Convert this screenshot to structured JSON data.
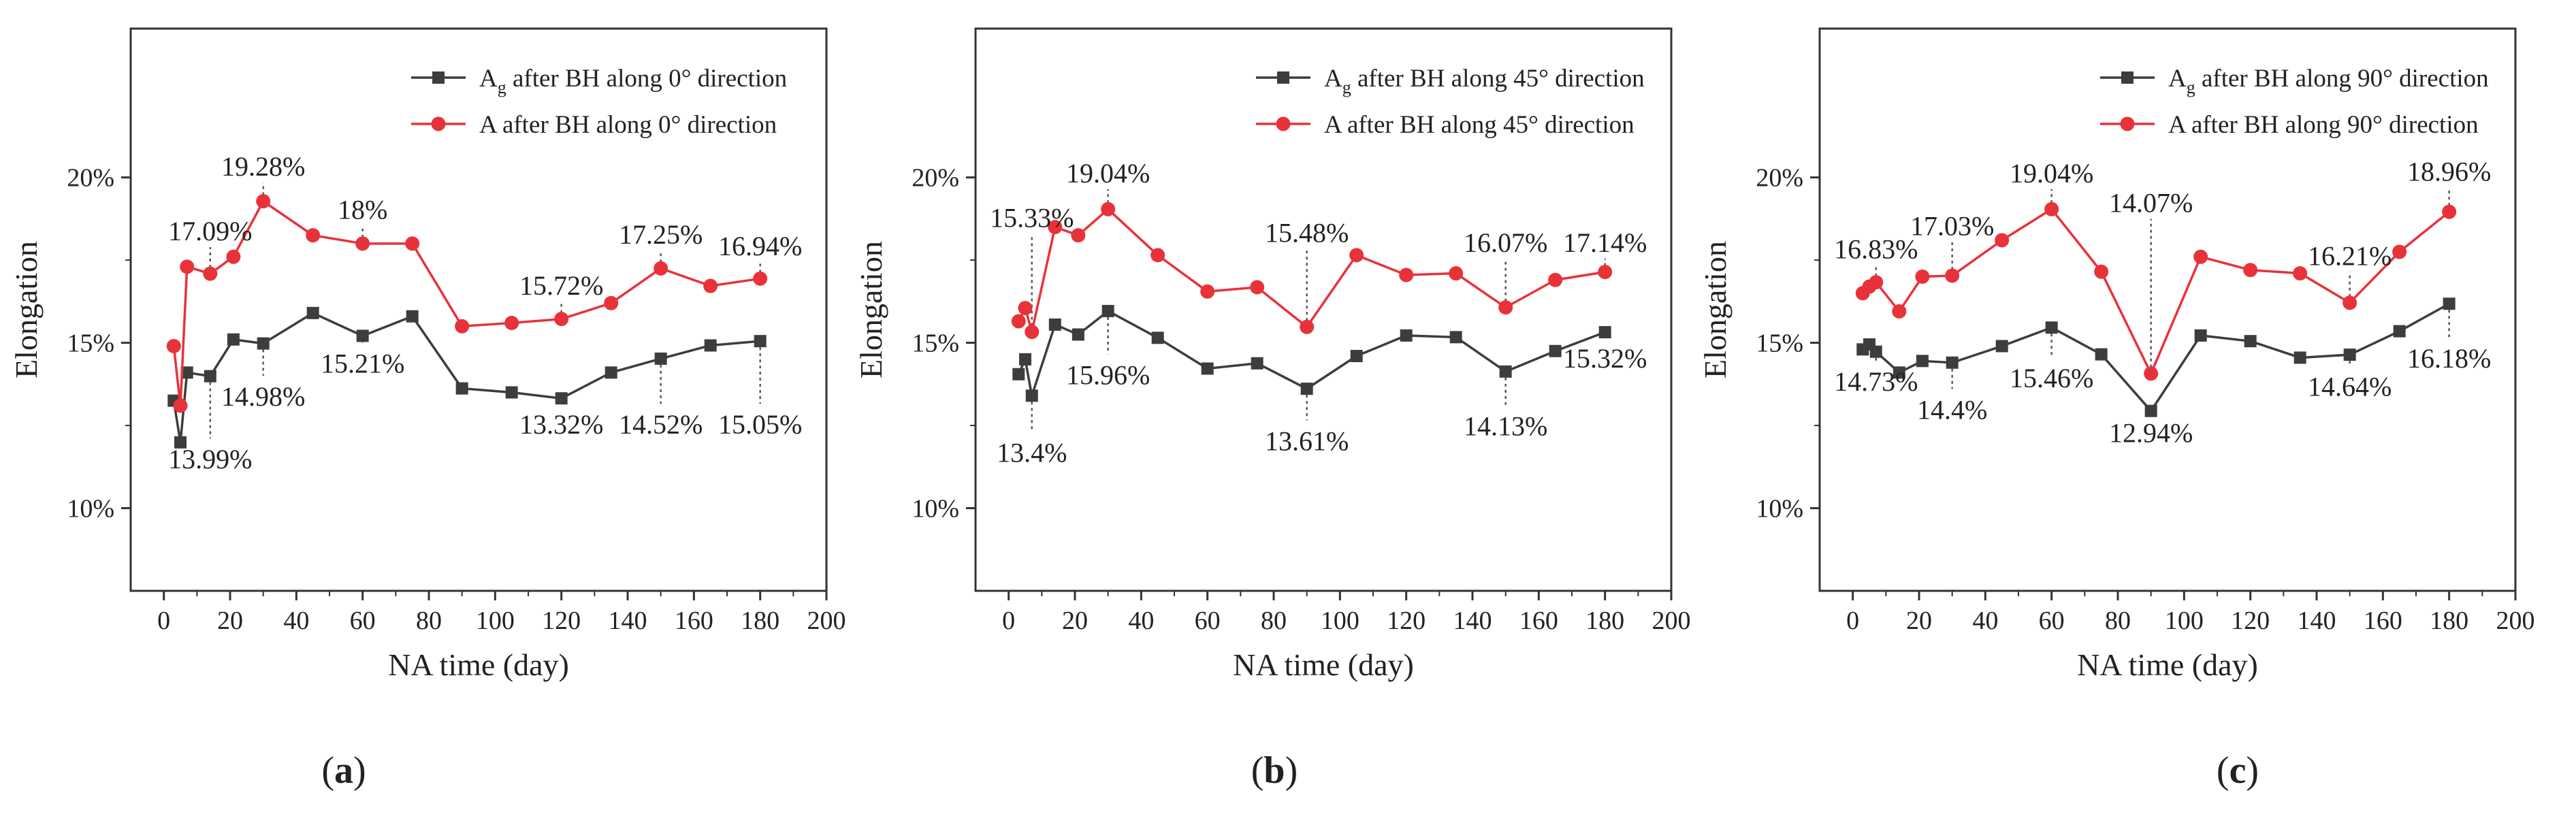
{
  "colors": {
    "series_a": "#e8323a",
    "series_ag": "#3d3d3d",
    "axis": "#333333",
    "guide": "#555555"
  },
  "chart_data": [
    {
      "type": "line",
      "panel_label": "a",
      "xlabel": "NA time (day)",
      "ylabel": "Elongation",
      "xlim": [
        -10,
        200
      ],
      "ylim": [
        7.5,
        24.5
      ],
      "xticks": [
        0,
        20,
        40,
        60,
        80,
        100,
        120,
        140,
        160,
        180,
        200
      ],
      "yticks": [
        10,
        15,
        20
      ],
      "ytick_labels": [
        "10%",
        "15%",
        "20%"
      ],
      "legend_position": "top-right",
      "series": [
        {
          "name_main": "A",
          "name_sub": "g",
          "name_rest": " after BH along 0° direction",
          "marker": "square",
          "color_key": "series_ag",
          "x": [
            3,
            5,
            7,
            14,
            21,
            30,
            45,
            60,
            75,
            90,
            105,
            120,
            135,
            150,
            165,
            180
          ],
          "y": [
            13.25,
            11.99,
            14.1,
            13.99,
            15.1,
            14.98,
            15.9,
            15.21,
            15.8,
            13.62,
            13.5,
            13.32,
            14.1,
            14.52,
            14.92,
            15.05
          ]
        },
        {
          "name_main": "A",
          "name_sub": "",
          "name_rest": " after BH along 0° direction",
          "marker": "circle",
          "color_key": "series_a",
          "x": [
            3,
            5,
            7,
            14,
            21,
            30,
            45,
            60,
            75,
            90,
            105,
            120,
            135,
            150,
            165,
            180
          ],
          "y": [
            14.9,
            13.1,
            17.3,
            17.09,
            17.6,
            19.28,
            18.25,
            18.0,
            18.0,
            15.5,
            15.6,
            15.72,
            16.2,
            17.25,
            16.72,
            16.94
          ]
        }
      ],
      "annotations": [
        {
          "text": "17.09%",
          "x": 14,
          "y": 17.09,
          "ty": 18.1,
          "dx": 0
        },
        {
          "text": "19.28%",
          "x": 30,
          "y": 19.28,
          "ty": 20.05,
          "dx": 0
        },
        {
          "text": "18%",
          "x": 60,
          "y": 18.0,
          "ty": 18.75,
          "dx": 0
        },
        {
          "text": "15.72%",
          "x": 120,
          "y": 15.72,
          "ty": 16.45,
          "dx": 0
        },
        {
          "text": "17.25%",
          "x": 150,
          "y": 17.25,
          "ty": 18.0,
          "dx": 0
        },
        {
          "text": "16.94%",
          "x": 180,
          "y": 16.94,
          "ty": 17.65,
          "dx": 0
        },
        {
          "text": "13.99%",
          "x": 14,
          "y": 13.99,
          "ty": 11.2,
          "dx": 0,
          "below": true
        },
        {
          "text": "14.98%",
          "x": 30,
          "y": 14.98,
          "ty": 13.1,
          "dx": 0,
          "below": true
        },
        {
          "text": "15.21%",
          "x": 60,
          "y": 15.21,
          "ty": 14.1,
          "dx": 0,
          "below": true
        },
        {
          "text": "13.32%",
          "x": 120,
          "y": 13.32,
          "ty": 12.25,
          "dx": 0,
          "below": true
        },
        {
          "text": "14.52%",
          "x": 150,
          "y": 14.52,
          "ty": 12.25,
          "dx": 0,
          "below": true
        },
        {
          "text": "15.05%",
          "x": 180,
          "y": 15.05,
          "ty": 12.25,
          "dx": 0,
          "below": true
        }
      ]
    },
    {
      "type": "line",
      "panel_label": "b",
      "xlabel": "NA time (day)",
      "ylabel": "Elongation",
      "xlim": [
        -10,
        200
      ],
      "ylim": [
        7.5,
        24.5
      ],
      "xticks": [
        0,
        20,
        40,
        60,
        80,
        100,
        120,
        140,
        160,
        180,
        200
      ],
      "yticks": [
        10,
        15,
        20
      ],
      "ytick_labels": [
        "10%",
        "15%",
        "20%"
      ],
      "legend_position": "top-right",
      "series": [
        {
          "name_main": "A",
          "name_sub": "g",
          "name_rest": " after BH along 45° direction",
          "marker": "square",
          "color_key": "series_ag",
          "x": [
            3,
            5,
            7,
            14,
            21,
            30,
            45,
            60,
            75,
            90,
            105,
            120,
            135,
            150,
            165,
            180
          ],
          "y": [
            14.05,
            14.5,
            13.4,
            15.55,
            15.25,
            15.96,
            15.15,
            14.22,
            14.38,
            13.61,
            14.6,
            15.22,
            15.17,
            14.13,
            14.75,
            15.32
          ]
        },
        {
          "name_main": "A",
          "name_sub": "",
          "name_rest": " after BH along 45° direction",
          "marker": "circle",
          "color_key": "series_a",
          "x": [
            3,
            5,
            7,
            14,
            21,
            30,
            45,
            60,
            75,
            90,
            105,
            120,
            135,
            150,
            165,
            180
          ],
          "y": [
            15.65,
            16.05,
            15.33,
            18.5,
            18.25,
            19.04,
            17.65,
            16.55,
            16.68,
            15.48,
            17.65,
            17.05,
            17.1,
            16.07,
            16.9,
            17.14
          ]
        }
      ],
      "annotations": [
        {
          "text": "15.33%",
          "x": 7,
          "y": 15.33,
          "ty": 18.5,
          "dx": 0
        },
        {
          "text": "19.04%",
          "x": 30,
          "y": 19.04,
          "ty": 19.85,
          "dx": 0
        },
        {
          "text": "15.48%",
          "x": 90,
          "y": 15.48,
          "ty": 18.05,
          "dx": 0
        },
        {
          "text": "16.07%",
          "x": 150,
          "y": 16.07,
          "ty": 17.75,
          "dx": 0
        },
        {
          "text": "17.14%",
          "x": 180,
          "y": 17.14,
          "ty": 17.75,
          "dx": 0
        },
        {
          "text": "13.4%",
          "x": 7,
          "y": 13.4,
          "ty": 11.4,
          "dx": 0,
          "below": true
        },
        {
          "text": "15.96%",
          "x": 30,
          "y": 15.96,
          "ty": 13.75,
          "dx": 0,
          "below": true
        },
        {
          "text": "13.61%",
          "x": 90,
          "y": 13.61,
          "ty": 11.75,
          "dx": 0,
          "below": true
        },
        {
          "text": "14.13%",
          "x": 150,
          "y": 14.13,
          "ty": 12.2,
          "dx": 0,
          "below": true
        },
        {
          "text": "15.32%",
          "x": 180,
          "y": 15.32,
          "ty": 14.25,
          "dx": 0,
          "below": true
        }
      ]
    },
    {
      "type": "line",
      "panel_label": "c",
      "xlabel": "NA time (day)",
      "ylabel": "Elongation",
      "xlim": [
        -10,
        200
      ],
      "ylim": [
        7.5,
        24.5
      ],
      "xticks": [
        0,
        20,
        40,
        60,
        80,
        100,
        120,
        140,
        160,
        180,
        200
      ],
      "yticks": [
        10,
        15,
        20
      ],
      "ytick_labels": [
        "10%",
        "15%",
        "20%"
      ],
      "legend_position": "top-right",
      "series": [
        {
          "name_main": "A",
          "name_sub": "g",
          "name_rest": " after BH along 90° direction",
          "marker": "square",
          "color_key": "series_ag",
          "x": [
            3,
            5,
            7,
            14,
            21,
            30,
            45,
            60,
            75,
            90,
            105,
            120,
            135,
            150,
            165,
            180
          ],
          "y": [
            14.8,
            14.95,
            14.73,
            14.1,
            14.45,
            14.4,
            14.9,
            15.46,
            14.65,
            12.94,
            15.22,
            15.05,
            14.55,
            14.64,
            15.35,
            16.18
          ]
        },
        {
          "name_main": "A",
          "name_sub": "",
          "name_rest": "  after BH along 90° direction",
          "marker": "circle",
          "color_key": "series_a",
          "x": [
            3,
            5,
            7,
            14,
            21,
            30,
            45,
            60,
            75,
            90,
            105,
            120,
            135,
            150,
            165,
            180
          ],
          "y": [
            16.5,
            16.7,
            16.83,
            15.95,
            17.0,
            17.03,
            18.1,
            19.04,
            17.15,
            14.07,
            17.6,
            17.2,
            17.1,
            16.21,
            17.75,
            18.96
          ]
        }
      ],
      "annotations": [
        {
          "text": "16.83%",
          "x": 7,
          "y": 16.83,
          "ty": 17.55,
          "dx": 0
        },
        {
          "text": "17.03%",
          "x": 30,
          "y": 17.03,
          "ty": 18.25,
          "dx": 0
        },
        {
          "text": "19.04%",
          "x": 60,
          "y": 19.04,
          "ty": 19.85,
          "dx": 0
        },
        {
          "text": "14.07%",
          "x": 90,
          "y": 14.07,
          "ty": 18.95,
          "dx": 0
        },
        {
          "text": "16.21%",
          "x": 150,
          "y": 16.21,
          "ty": 17.35,
          "dx": 0
        },
        {
          "text": "18.96%",
          "x": 180,
          "y": 18.96,
          "ty": 19.9,
          "dx": 0
        },
        {
          "text": "14.73%",
          "x": 7,
          "y": 14.73,
          "ty": 13.55,
          "dx": 0,
          "below": true
        },
        {
          "text": "14.4%",
          "x": 30,
          "y": 14.4,
          "ty": 12.7,
          "dx": 0,
          "below": true
        },
        {
          "text": "15.46%",
          "x": 60,
          "y": 15.46,
          "ty": 13.65,
          "dx": 0,
          "below": true
        },
        {
          "text": "12.94%",
          "x": 90,
          "y": 12.94,
          "ty": 12.0,
          "dx": 0,
          "below": true
        },
        {
          "text": "14.64%",
          "x": 150,
          "y": 14.64,
          "ty": 13.4,
          "dx": 0,
          "below": true
        },
        {
          "text": "16.18%",
          "x": 180,
          "y": 16.18,
          "ty": 14.25,
          "dx": 0,
          "below": true
        }
      ]
    }
  ]
}
